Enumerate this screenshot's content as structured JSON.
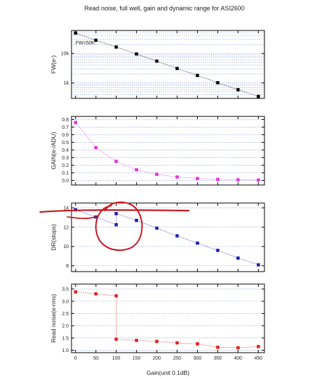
{
  "figure": {
    "title": "Read noise, full well, gain and dynamic range for ASI2600",
    "xlabel": "Gain(unit 0.1dB)"
  },
  "chart_data": [
    {
      "type": "line",
      "ylabel": "FW(e-)",
      "log_y": true,
      "ylim": [
        300,
        60000
      ],
      "xlim": [
        -10,
        465
      ],
      "yticks": [
        1000,
        10000
      ],
      "ytick_labels": [
        "1k",
        "10k"
      ],
      "grid": true,
      "annotation": "FW=50K",
      "marker_color": "#000000",
      "x": [
        0,
        50,
        100,
        150,
        200,
        250,
        300,
        350,
        400,
        450
      ],
      "y": [
        49000,
        28000,
        16500,
        9600,
        5500,
        3100,
        1800,
        1020,
        590,
        350
      ]
    },
    {
      "type": "line",
      "ylabel": "GAIN(e-/ADU)",
      "ylim": [
        -0.06,
        0.84
      ],
      "xlim": [
        -10,
        465
      ],
      "yticks": [
        0.0,
        0.1,
        0.2,
        0.3,
        0.4,
        0.5,
        0.6,
        0.7,
        0.8
      ],
      "ytick_labels": [
        "0.0",
        "0.1",
        "0.2",
        "0.3",
        "0.4",
        "0.5",
        "0.6",
        "0.7",
        "0.8"
      ],
      "grid": true,
      "marker_color": "#e033e0",
      "x": [
        0,
        50,
        100,
        150,
        200,
        250,
        300,
        350,
        400,
        450
      ],
      "y": [
        0.76,
        0.43,
        0.25,
        0.14,
        0.08,
        0.045,
        0.025,
        0.014,
        0.008,
        0.005
      ]
    },
    {
      "type": "line",
      "ylabel": "DR(stops)",
      "ylim": [
        7.4,
        14.5
      ],
      "xlim": [
        -10,
        465
      ],
      "yticks": [
        8,
        10,
        12,
        14
      ],
      "ytick_labels": [
        "8",
        "10",
        "12",
        "14"
      ],
      "grid": true,
      "marker_color": "#1f1fb4",
      "x": [
        0,
        50,
        100,
        100,
        150,
        200,
        250,
        300,
        350,
        400,
        450
      ],
      "y": [
        13.8,
        13.05,
        12.25,
        13.4,
        12.7,
        11.9,
        11.1,
        10.35,
        9.6,
        8.8,
        8.1
      ]
    },
    {
      "type": "line",
      "ylabel": "Read noise(e-rms)",
      "xlabel": "Gain(unit 0.1dB)",
      "ylim": [
        0.9,
        3.7
      ],
      "xlim": [
        -10,
        465
      ],
      "yticks": [
        1.0,
        1.5,
        2.0,
        2.5,
        3.0,
        3.5
      ],
      "ytick_labels": [
        "1.0",
        "1.5",
        "2.0",
        "2.5",
        "3.0",
        "3.5"
      ],
      "xticks": [
        0,
        50,
        100,
        150,
        200,
        250,
        300,
        350,
        400,
        450
      ],
      "xtick_labels": [
        "0",
        "50",
        "100",
        "150",
        "200",
        "250",
        "300",
        "350",
        "400",
        "450"
      ],
      "grid": true,
      "marker_color": "#dd2222",
      "x": [
        0,
        50,
        100,
        100,
        150,
        200,
        250,
        300,
        350,
        400,
        450
      ],
      "y": [
        3.38,
        3.3,
        3.22,
        1.45,
        1.4,
        1.36,
        1.3,
        1.26,
        1.12,
        1.1,
        1.15
      ]
    }
  ]
}
